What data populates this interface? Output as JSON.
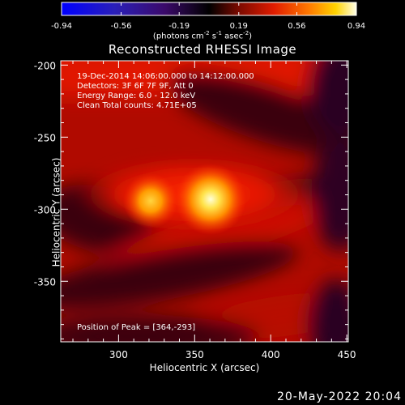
{
  "colorbar": {
    "tick_labels": [
      "-0.94",
      "-0.56",
      "-0.19",
      "0.19",
      "0.56",
      "0.94"
    ],
    "min": -0.94,
    "max": 0.94,
    "units_main": "(photons cm",
    "units_exp1": "-2",
    "units_mid": " s",
    "units_exp2": "-1",
    "units_mid2": " asec",
    "units_exp3": "-2",
    "units_end": ")"
  },
  "title": "Reconstructed RHESSI Image",
  "info": {
    "time": "19-Dec-2014 14:06:00.000 to 14:12:00.000",
    "detectors": "Detectors: 3F 6F 7F 9F, Att 0",
    "energy": "Energy Range: 6.0 - 12.0 keV",
    "clean": "Clean     Total counts: 4.71E+05",
    "peak": "Position of Peak = [364,-293]"
  },
  "footer_stamp": "20-May-2022 20:04",
  "chart_data": {
    "type": "heatmap",
    "title": "Reconstructed RHESSI Image",
    "xlabel": "Heliocentric X (arcsec)",
    "ylabel": "Heliocentric Y (arcsec)",
    "xlim": [
      262,
      451
    ],
    "ylim": [
      -392,
      -197
    ],
    "x_ticks": [
      300,
      350,
      400,
      450
    ],
    "x_tick_labels": [
      "300",
      "350",
      "400",
      "450"
    ],
    "y_ticks": [
      -200,
      -250,
      -300,
      -350
    ],
    "y_tick_labels": [
      "-200",
      "-250",
      "-300",
      "-350"
    ],
    "colormap": "rhessi-hot",
    "value_range": [
      -0.94,
      0.94
    ],
    "sources": [
      {
        "x": 364,
        "y": -293,
        "peak": 0.94
      },
      {
        "x": 323,
        "y": -293,
        "peak": 0.7
      }
    ],
    "peak_position": [
      364,
      -293
    ]
  }
}
